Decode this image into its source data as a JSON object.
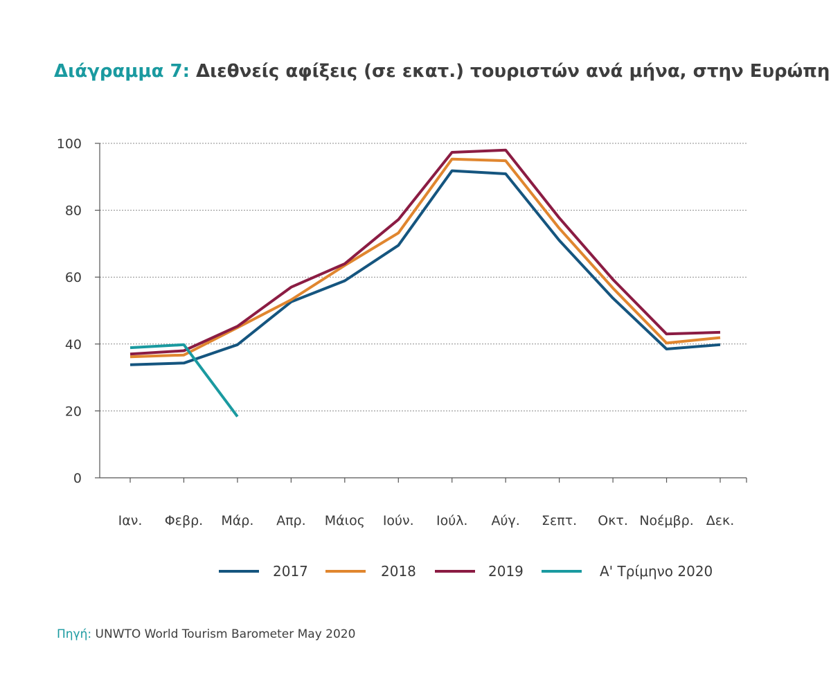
{
  "title": {
    "prefix": "Διάγραμμα 7:",
    "text": "Διεθνείς αφίξεις (σε εκατ.) τουριστών ανά μήνα, στην Ευρώπη",
    "prefix_color": "#1a9aa0"
  },
  "source": {
    "label": "Πηγή:",
    "text": "UNWTO World Tourism Barometer May 2020"
  },
  "chart_data": {
    "type": "line",
    "title": "Διεθνείς αφίξεις (σε εκατ.) τουριστών ανά μήνα, στην Ευρώπη",
    "xlabel": "",
    "ylabel": "",
    "categories": [
      "Ιαν.",
      "Φεβρ.",
      "Μάρ.",
      "Απρ.",
      "Μάιος",
      "Ιούν.",
      "Ιούλ.",
      "Αύγ.",
      "Σεπτ.",
      "Οκτ.",
      "Νοέμβρ.",
      "Δεκ."
    ],
    "ylim": [
      0,
      100
    ],
    "yticks": [
      0,
      20,
      40,
      60,
      80,
      100
    ],
    "grid": true,
    "legend": "bottom",
    "series": [
      {
        "name": "2017",
        "color": "#15557f",
        "values": [
          33.8,
          34.3,
          39.8,
          52.6,
          58.9,
          69.5,
          91.8,
          90.9,
          71.0,
          53.7,
          38.5,
          39.8
        ]
      },
      {
        "name": "2018",
        "color": "#e0862f",
        "values": [
          36.2,
          36.7,
          44.9,
          53.2,
          63.5,
          73.2,
          95.3,
          94.8,
          74.6,
          56.7,
          40.3,
          41.9
        ]
      },
      {
        "name": "2019",
        "color": "#8b1c43",
        "values": [
          37.0,
          38.0,
          45.3,
          57.0,
          64.0,
          77.2,
          97.3,
          98.0,
          77.7,
          59.3,
          43.0,
          43.5
        ]
      },
      {
        "name": "Α' Τρίμηνο 2020",
        "color": "#1a9aa0",
        "values": [
          38.9,
          39.8,
          18.3,
          null,
          null,
          null,
          null,
          null,
          null,
          null,
          null,
          null
        ]
      }
    ]
  }
}
